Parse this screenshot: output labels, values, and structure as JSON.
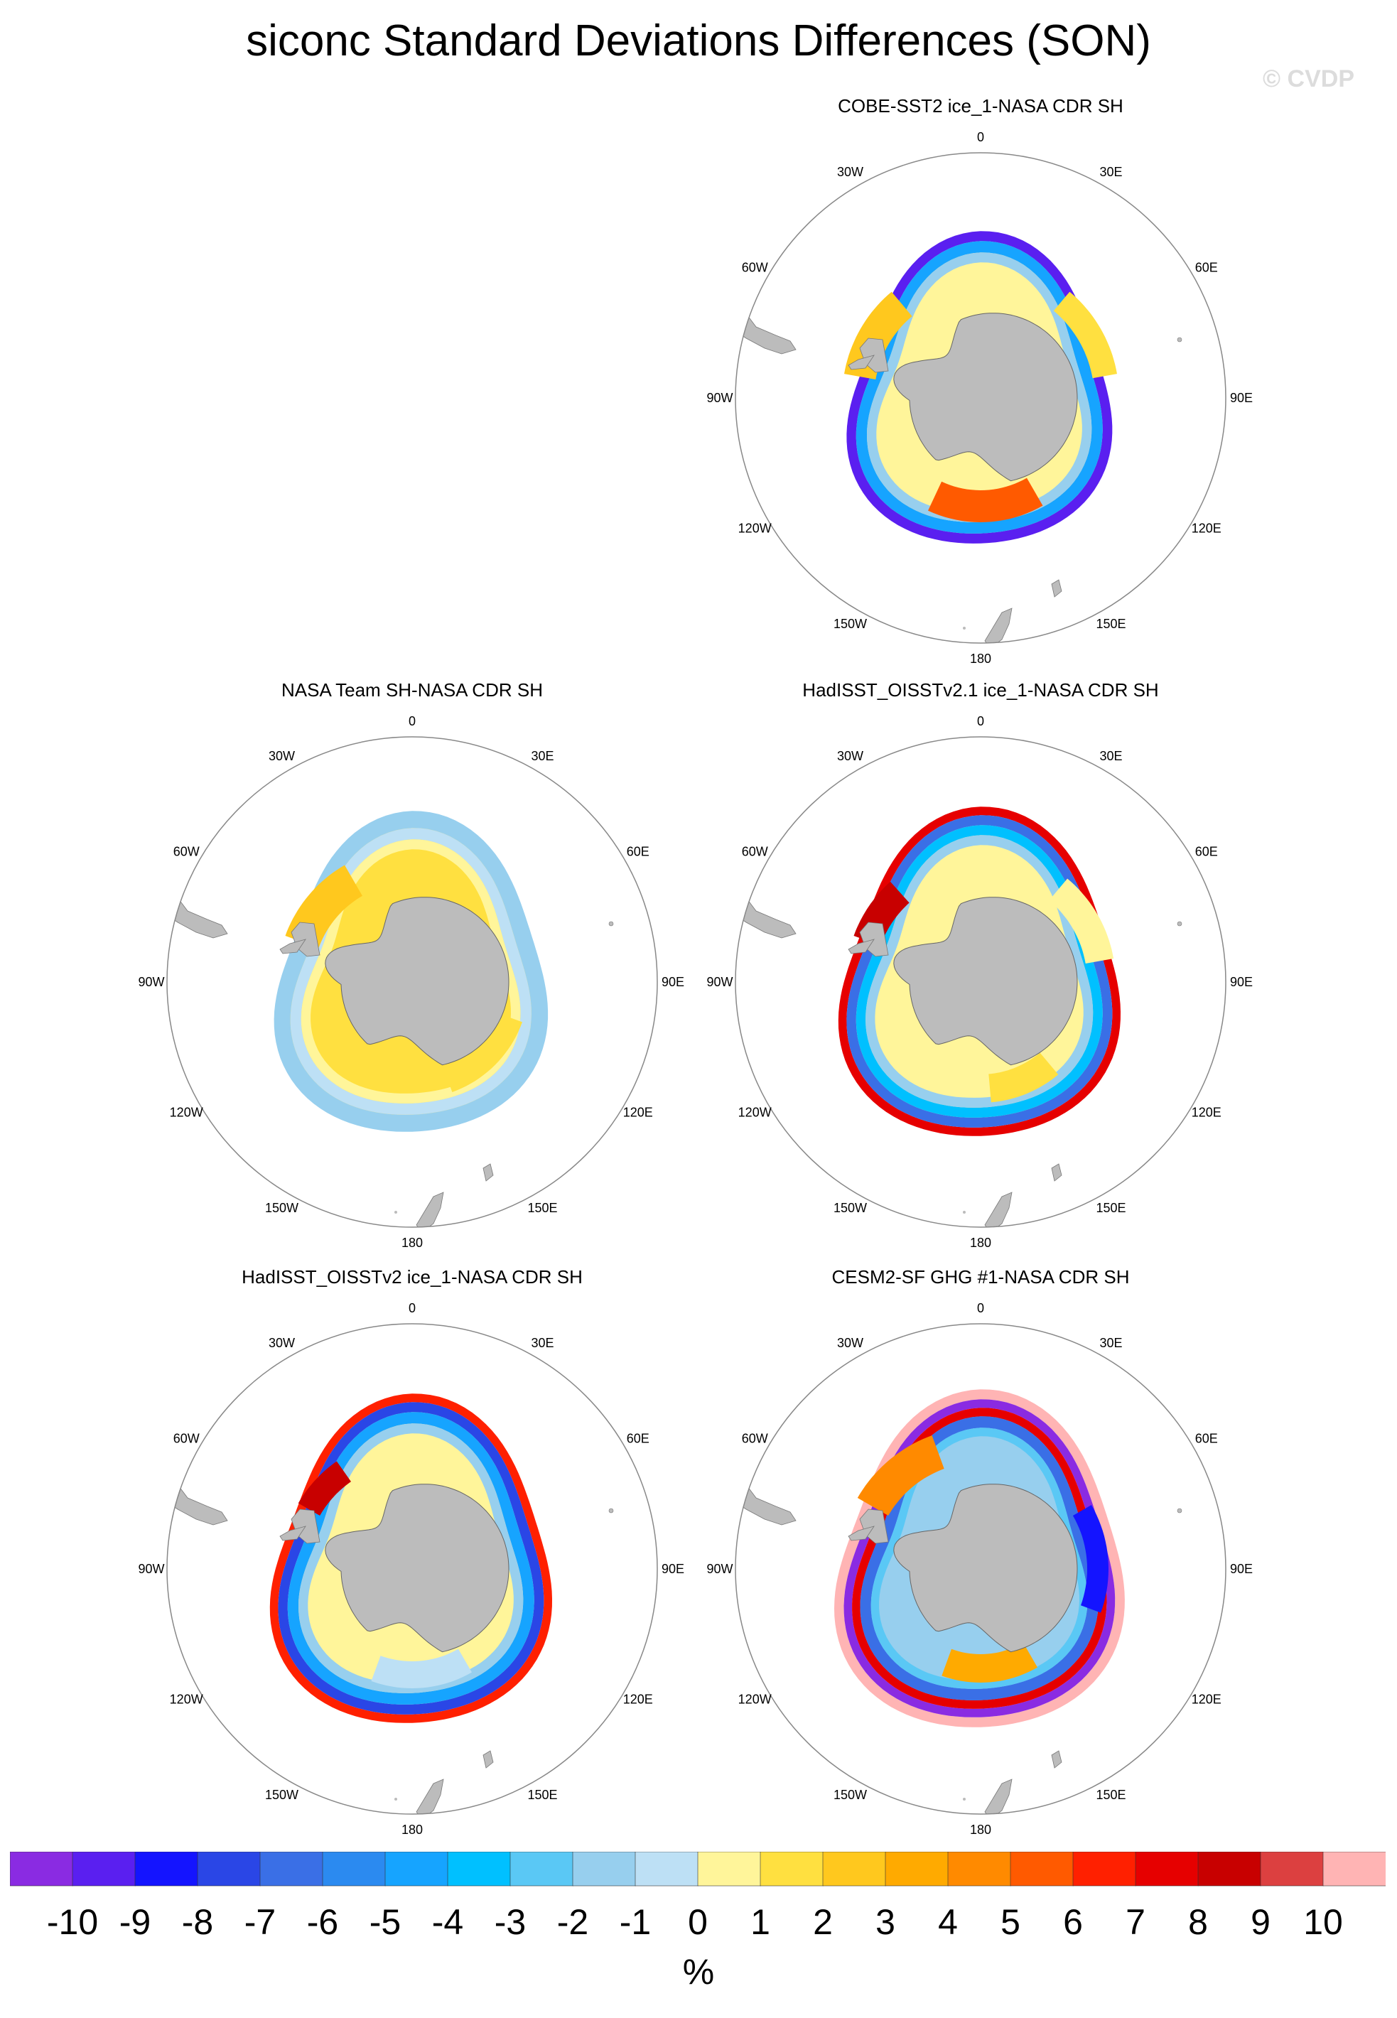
{
  "title": "siconc Standard Deviations Differences (SON)",
  "watermark": "© CVDP",
  "panels": [
    {
      "title": "COBE-SST2 ice_1-NASA CDR SH",
      "ring": "cobe"
    },
    {
      "title": "NASA Team SH-NASA CDR SH",
      "ring": "team"
    },
    {
      "title": "HadISST_OISSTv2.1 ice_1-NASA CDR SH",
      "ring": "had21"
    },
    {
      "title": "HadISST_OISSTv2 ice_1-NASA CDR SH",
      "ring": "had2"
    },
    {
      "title": "CESM2-SF GHG #1-NASA CDR SH",
      "ring": "cesm"
    }
  ],
  "lon_labels": {
    "l0": "0",
    "l30e": "30E",
    "l60e": "60E",
    "l90e": "90E",
    "l120e": "120E",
    "l150e": "150E",
    "l180": "180",
    "l150w": "150W",
    "l120w": "120W",
    "l90w": "90W",
    "l60w": "60W",
    "l30w": "30W"
  },
  "colorbar": {
    "colors": [
      "#8a2be2",
      "#5a1ff0",
      "#1414ff",
      "#2a46e6",
      "#3a6fe6",
      "#2b8af0",
      "#16a4ff",
      "#00c0ff",
      "#5ac8f5",
      "#97cfee",
      "#bde0f5",
      "#fff59a",
      "#ffe040",
      "#ffc81e",
      "#ffaa00",
      "#ff8a00",
      "#ff5a00",
      "#ff2000",
      "#e60000",
      "#c80000",
      "#dc4040",
      "#ffb4b4"
    ],
    "labels": [
      "-10",
      "-9",
      "-8",
      "-7",
      "-6",
      "-5",
      "-4",
      "-3",
      "-2",
      "-1",
      "0",
      "1",
      "2",
      "3",
      "4",
      "5",
      "6",
      "7",
      "8",
      "9",
      "10"
    ],
    "units": "%"
  },
  "colors": {
    "land": "#bcbcbc",
    "circle": "#888888"
  }
}
